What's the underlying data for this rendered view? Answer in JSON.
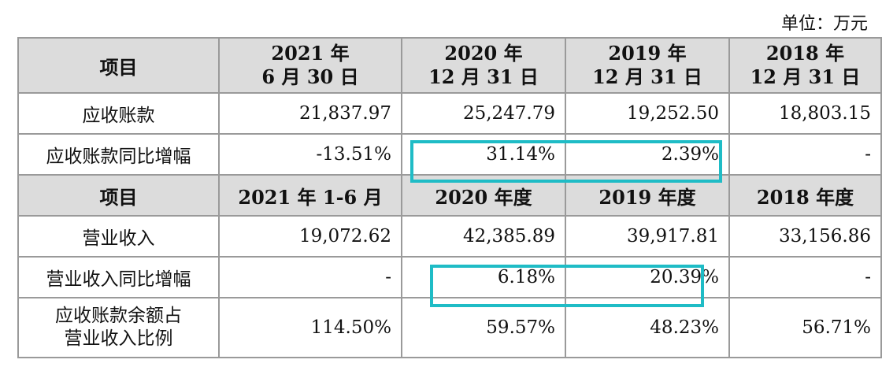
{
  "unit_label": "单位：万元",
  "section1": {
    "headers": [
      "项目",
      "2021 年\n6 月 30 日",
      "2020 年\n12 月 31 日",
      "2019 年\n12 月 31 日",
      "2018 年\n12 月 31 日"
    ],
    "rows": [
      {
        "label": "应收账款",
        "values": [
          "21,837.97",
          "25,247.79",
          "19,252.50",
          "18,803.15"
        ]
      },
      {
        "label": "应收账款同比增幅",
        "values": [
          "-13.51%",
          "31.14%",
          "2.39%",
          "-"
        ]
      }
    ]
  },
  "section2": {
    "headers": [
      "项目",
      "2021 年 1-6 月",
      "2020 年度",
      "2019 年度",
      "2018 年度"
    ],
    "rows": [
      {
        "label": "营业收入",
        "values": [
          "19,072.62",
          "42,385.89",
          "39,917.81",
          "33,156.86"
        ]
      },
      {
        "label": "营业收入同比增幅",
        "values": [
          "-",
          "6.18%",
          "20.39%",
          "-"
        ]
      },
      {
        "label": "应收账款余额占\n营业收入比例",
        "values": [
          "114.50%",
          "59.57%",
          "48.23%",
          "56.71%"
        ]
      }
    ]
  },
  "highlight_color": "#1fbcc6"
}
